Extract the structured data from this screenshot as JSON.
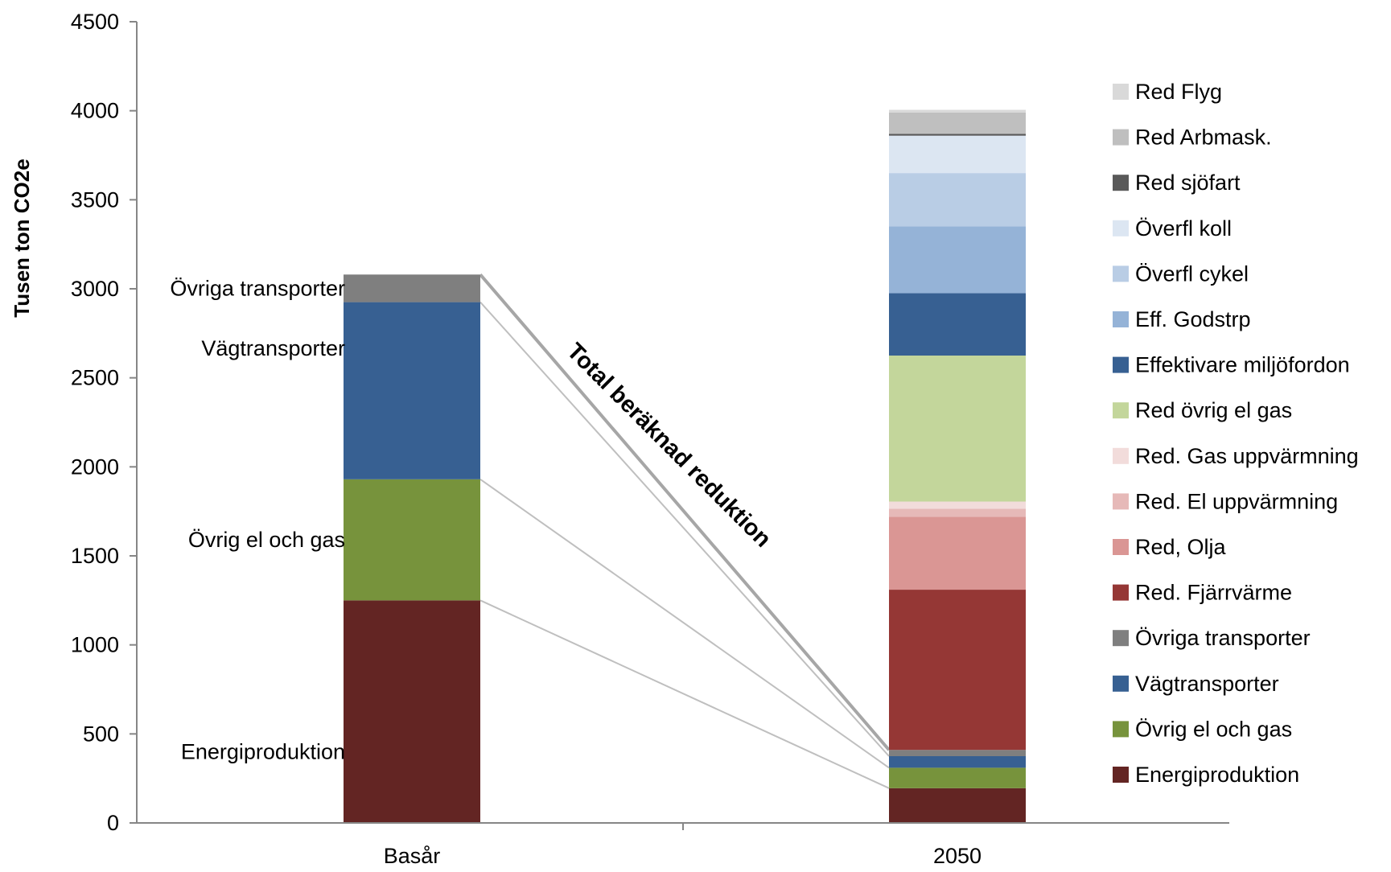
{
  "chart_data": {
    "type": "bar",
    "stacked": true,
    "categories": [
      "Basår",
      "2050"
    ],
    "ylabel": "Tusen ton CO2e",
    "ylim": [
      0,
      4500
    ],
    "yticks": [
      0,
      500,
      1000,
      1500,
      2000,
      2500,
      3000,
      3500,
      4000,
      4500
    ],
    "grid": false,
    "legend": "right",
    "series": [
      {
        "name": "Energiproduktion",
        "color": "#632523",
        "values": [
          1250,
          195
        ]
      },
      {
        "name": "Övrig el och gas",
        "color": "#77933c",
        "values": [
          680,
          115
        ]
      },
      {
        "name": "Vägtransporter",
        "color": "#376092",
        "values": [
          995,
          65
        ]
      },
      {
        "name": "Övriga transporter",
        "color": "#7f7f7f",
        "values": [
          155,
          35
        ]
      },
      {
        "name": "Red. Fjärrvärme",
        "color": "#953735",
        "values": [
          0,
          900
        ]
      },
      {
        "name": "Red, Olja",
        "color": "#da9694",
        "values": [
          0,
          410
        ]
      },
      {
        "name": "Red. El uppvärmning",
        "color": "#e6b9b8",
        "values": [
          0,
          45
        ]
      },
      {
        "name": "Red. Gas uppvärmning",
        "color": "#f2dcdb",
        "values": [
          0,
          40
        ]
      },
      {
        "name": "Red övrig el gas",
        "color": "#c3d69b",
        "values": [
          0,
          820
        ]
      },
      {
        "name": "Effektivare miljöfordon",
        "color": "#376092",
        "values": [
          0,
          350
        ]
      },
      {
        "name": "Eff. Godstrp",
        "color": "#95b3d7",
        "values": [
          0,
          375
        ]
      },
      {
        "name": "Överfl cykel",
        "color": "#b9cde5",
        "values": [
          0,
          300
        ]
      },
      {
        "name": "Överfl koll",
        "color": "#dce6f2",
        "values": [
          0,
          210
        ]
      },
      {
        "name": "Red sjöfart",
        "color": "#595959",
        "values": [
          0,
          10
        ]
      },
      {
        "name": "Red Arbmask.",
        "color": "#bfbfbf",
        "values": [
          0,
          120
        ]
      },
      {
        "name": "Red Flyg",
        "color": "#d9d9d9",
        "values": [
          0,
          15
        ]
      }
    ],
    "segment_labels": {
      "Energiproduktion": "Energiproduktion",
      "Övrig el och gas": "Övrig el och gas",
      "Vägtransporter": "Vägtransporter",
      "Övriga transporter": "Övriga transporter"
    },
    "annotation": "Total  beräknad reduktion"
  }
}
